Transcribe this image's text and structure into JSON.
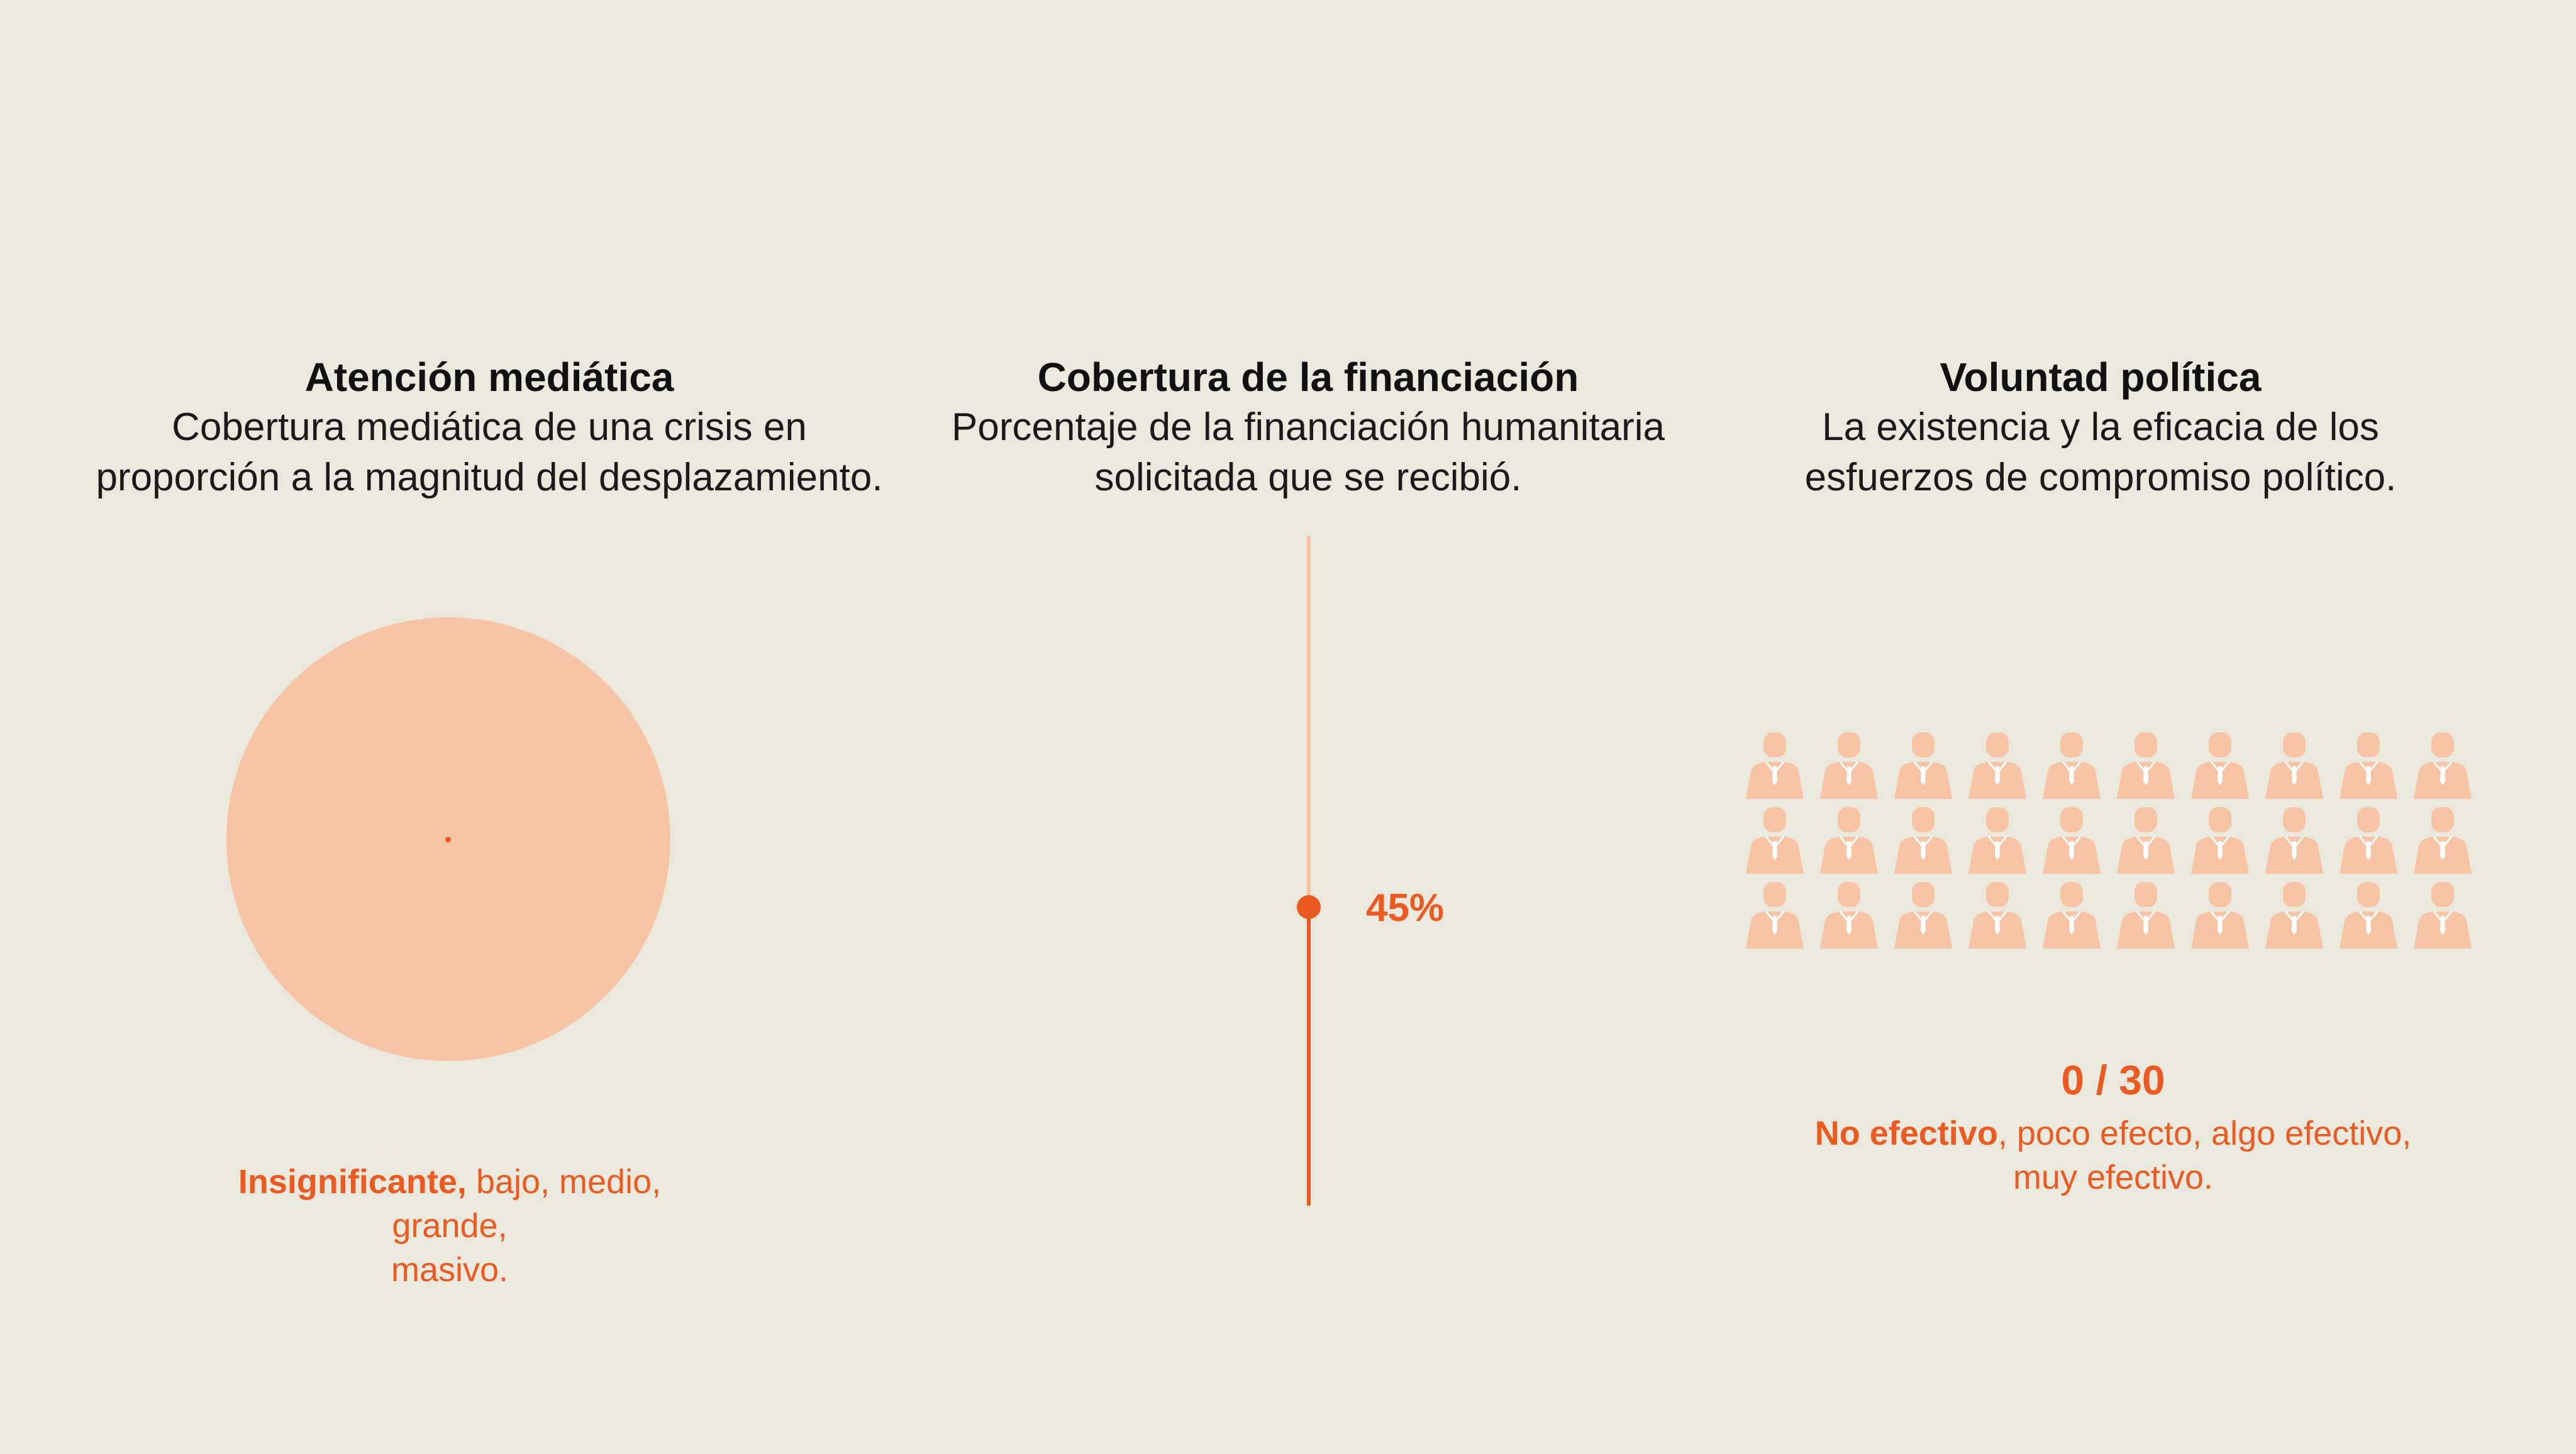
{
  "colors": {
    "background": "#ebe8dd",
    "accent": "#ea5a21",
    "light_accent": "#f6c4a5"
  },
  "media": {
    "heading": "Atención mediática",
    "desc_line1": "Cobertura mediática de una crisis en",
    "desc_line2": "proporción a la magnitud del desplazamiento.",
    "level_selected": "Insignificante,",
    "levels_rest_1": " bajo, medio, grande,",
    "levels_rest_2": "masivo."
  },
  "funding": {
    "heading": "Cobertura de la financiación",
    "desc_line1": "Porcentaje de la financiación humanitaria",
    "desc_line2": "solicitada que se recibió.",
    "value_label": "45%",
    "value_fraction": 0.45
  },
  "politics": {
    "heading": "Voluntad política",
    "desc_line1": "La existencia y la eficacia de los",
    "desc_line2": "esfuerzos de compromiso político.",
    "count_label": "0 / 30",
    "highlighted_count": 0,
    "total_count": 30,
    "level_selected": "No efectivo",
    "levels_rest_1": ", poco efecto, algo efectivo,",
    "levels_rest_2": "muy efectivo.",
    "person_icon": "businessperson-icon"
  }
}
